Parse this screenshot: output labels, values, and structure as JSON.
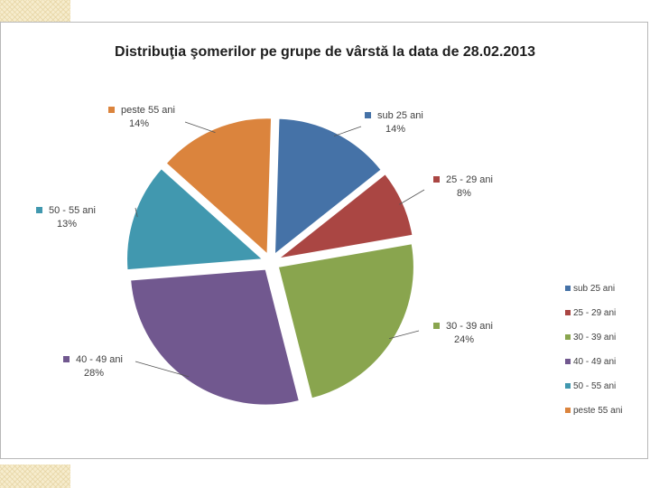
{
  "chart_data": {
    "type": "pie",
    "title": "Distribuţia şomerilor pe grupe de vârstă la data de 28.02.2013",
    "categories": [
      "sub 25 ani",
      "25 - 29 ani",
      "30 - 39 ani",
      "40 - 49 ani",
      "50 - 55 ani",
      "peste 55 ani"
    ],
    "values": [
      14,
      8,
      24,
      28,
      13,
      14
    ],
    "data_labels": [
      "14%",
      "8%",
      "24%",
      "28%",
      "13%",
      "14%"
    ],
    "colors": [
      "#4572a7",
      "#aa4643",
      "#89a54e",
      "#71588f",
      "#4198af",
      "#db843d"
    ],
    "exploded": true,
    "legend_position": "right"
  }
}
